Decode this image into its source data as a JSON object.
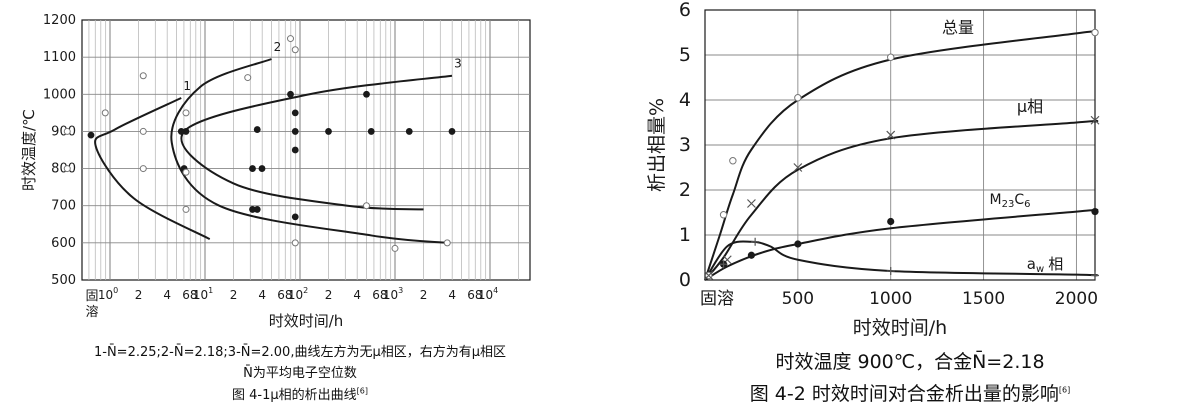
{
  "chart_data": [
    {
      "type": "line",
      "title": "",
      "ylabel": "时效温度/℃",
      "xlabel": "时效时间/h",
      "ylim": [
        500,
        1200
      ],
      "yticks": [
        500,
        600,
        700,
        800,
        900,
        1000,
        1100,
        1200
      ],
      "x_scale": "log",
      "x_origin_label": "固溶",
      "x_decades": [
        {
          "exp": 0,
          "base": "10",
          "sup": "0"
        },
        {
          "exp": 1,
          "base": "10",
          "sup": "1"
        },
        {
          "exp": 2,
          "base": "10",
          "sup": "2"
        },
        {
          "exp": 3,
          "base": "10",
          "sup": "3"
        },
        {
          "exp": 4,
          "base": "10",
          "sup": "4"
        }
      ],
      "x_minor_labels": [
        "2",
        "4",
        "68"
      ],
      "grid": true,
      "series": [
        {
          "name": "1",
          "points": [
            [
              0.75,
              990
            ],
            [
              0.05,
              905
            ],
            [
              -0.15,
              860
            ],
            [
              0.25,
              720
            ],
            [
              1.05,
              610
            ]
          ]
        },
        {
          "name": "2",
          "points": [
            [
              1.7,
              1095
            ],
            [
              0.95,
              1020
            ],
            [
              0.65,
              870
            ],
            [
              1.15,
              700
            ],
            [
              2.75,
              620
            ],
            [
              3.55,
              600
            ]
          ]
        },
        {
          "name": "3",
          "points": [
            [
              3.6,
              1050
            ],
            [
              2.1,
              1000
            ],
            [
              0.78,
              900
            ],
            [
              1.3,
              760
            ],
            [
              2.5,
              700
            ],
            [
              3.3,
              690
            ]
          ]
        }
      ],
      "markers_filled": [
        [
          -0.2,
          890
        ],
        [
          0.75,
          900
        ],
        [
          0.8,
          900
        ],
        [
          0.78,
          800
        ],
        [
          1.55,
          905
        ],
        [
          1.5,
          690
        ],
        [
          1.55,
          690
        ],
        [
          1.5,
          800
        ],
        [
          1.6,
          800
        ],
        [
          1.9,
          1000
        ],
        [
          1.95,
          950
        ],
        [
          1.95,
          900
        ],
        [
          1.95,
          850
        ],
        [
          1.95,
          670
        ],
        [
          2.3,
          900
        ],
        [
          2.7,
          1000
        ],
        [
          2.75,
          900
        ],
        [
          3.15,
          900
        ],
        [
          3.6,
          900
        ]
      ],
      "markers_open": [
        [
          0.35,
          1050
        ],
        [
          0.35,
          900
        ],
        [
          0.35,
          800
        ],
        [
          1.45,
          1045
        ],
        [
          0.8,
          950
        ],
        [
          0.8,
          790
        ],
        [
          0.8,
          690
        ],
        [
          1.9,
          1150
        ],
        [
          1.95,
          1120
        ],
        [
          1.95,
          600
        ],
        [
          2.7,
          700
        ],
        [
          3.55,
          600
        ],
        [
          3.0,
          585
        ],
        [
          -0.45,
          900
        ],
        [
          -0.45,
          800
        ],
        [
          -0.05,
          950
        ]
      ],
      "annotations": {
        "legend_line1": "1-N̄=2.25;2-N̄=2.18;3-N̄=2.00,曲线左方为无μ相区，右方为有μ相区",
        "legend_line2": "N̄为平均电子空位数"
      },
      "caption_text": "图 4-1μ相的析出曲线",
      "caption_ref": "[6]"
    },
    {
      "type": "line",
      "title": "",
      "ylabel": "析出相量%",
      "xlabel": "时效时间/h",
      "xlim": [
        0,
        2100
      ],
      "ylim": [
        0,
        6
      ],
      "xticks": [
        0,
        500,
        1000,
        1500,
        2000
      ],
      "xtick_labels": [
        "固溶",
        "500",
        "1000",
        "1500",
        "2000"
      ],
      "yticks": [
        0,
        1,
        2,
        3,
        4,
        5,
        6
      ],
      "grid": true,
      "series": [
        {
          "name": "总量",
          "x": [
            0,
            80,
            150,
            250,
            500,
            1000,
            2000,
            2100
          ],
          "y": [
            0,
            1.0,
            1.9,
            2.9,
            4.0,
            4.9,
            5.48,
            5.5
          ]
        },
        {
          "name": "μ相",
          "x": [
            0,
            100,
            250,
            500,
            1000,
            2000,
            2100
          ],
          "y": [
            0,
            0.5,
            1.45,
            2.45,
            3.15,
            3.5,
            3.52
          ]
        },
        {
          "name": "M23C6",
          "x": [
            0,
            120,
            300,
            500,
            1000,
            2000,
            2100
          ],
          "y": [
            0,
            0.3,
            0.6,
            0.8,
            1.15,
            1.52,
            1.55
          ]
        },
        {
          "name": "aw相",
          "x": [
            0,
            120,
            250,
            350,
            500,
            1000,
            2000,
            2100
          ],
          "y": [
            0,
            0.75,
            0.85,
            0.75,
            0.45,
            0.2,
            0.12,
            0.1
          ]
        }
      ],
      "series_labels": {
        "total": "总量",
        "mu": "μ相",
        "m23c6_main": "M",
        "m23c6_sub1": "23",
        "m23c6_mid": "C",
        "m23c6_sub2": "6",
        "aw_main": "a",
        "aw_sub": "w",
        "aw_rest": "相"
      },
      "markers": {
        "total_open": [
          [
            20,
            0.1
          ],
          [
            100,
            1.45
          ],
          [
            150,
            2.65
          ],
          [
            500,
            4.05
          ],
          [
            1000,
            4.95
          ],
          [
            2100,
            5.5
          ]
        ],
        "mu_x": [
          [
            20,
            0.1
          ],
          [
            120,
            0.45
          ],
          [
            250,
            1.7
          ],
          [
            500,
            2.5
          ],
          [
            1000,
            3.22
          ],
          [
            2100,
            3.55
          ]
        ],
        "m23_filled": [
          [
            100,
            0.35
          ],
          [
            250,
            0.55
          ],
          [
            500,
            0.8
          ],
          [
            1000,
            1.3
          ],
          [
            2100,
            1.52
          ]
        ],
        "aw_plus": [
          [
            100,
            0.35
          ],
          [
            270,
            0.85
          ],
          [
            1000,
            0.2
          ],
          [
            2100,
            0.1
          ]
        ]
      },
      "caption_line1": "时效温度 900℃，合金N̄=2.18",
      "caption_text": "图 4-2 时效时间对合金析出量的影响",
      "caption_ref": "[6]"
    }
  ],
  "colors": {
    "ink": "#1a1a1a",
    "grid": "#888888",
    "faint_grid": "#bbbbbb"
  }
}
